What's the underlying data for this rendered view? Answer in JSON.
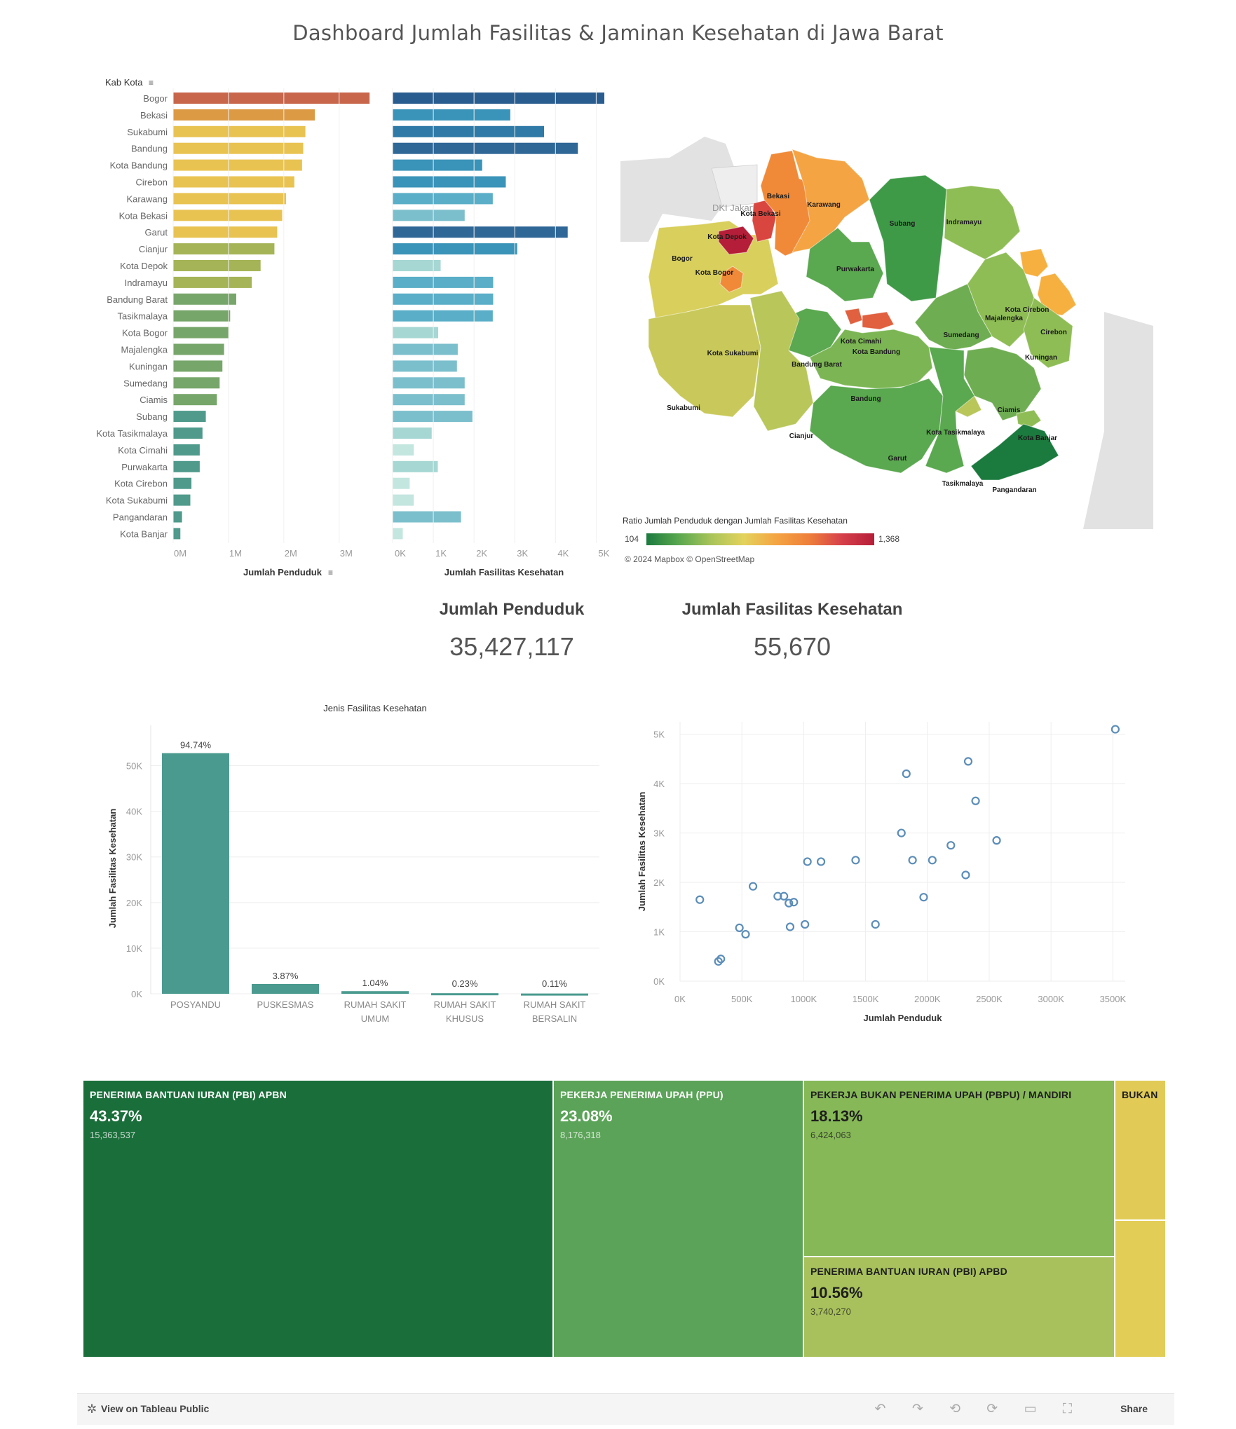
{
  "dashboard": {
    "title": "Dashboard Jumlah Fasilitas & Jaminan Kesehatan di Jawa Barat"
  },
  "chart_data": [
    {
      "id": "penduduk-bar",
      "type": "bar",
      "orientation": "horizontal",
      "dimension_label": "Kab Kota",
      "xlabel": "Jumlah Penduduk",
      "categories": [
        "Bogor",
        "Bekasi",
        "Sukabumi",
        "Bandung",
        "Kota Bandung",
        "Cirebon",
        "Karawang",
        "Kota Bekasi",
        "Garut",
        "Cianjur",
        "Kota Depok",
        "Indramayu",
        "Bandung Barat",
        "Tasikmalaya",
        "Kota Bogor",
        "Majalengka",
        "Kuningan",
        "Sumedang",
        "Ciamis",
        "Subang",
        "Kota Tasikmalaya",
        "Kota Cimahi",
        "Purwakarta",
        "Kota Cirebon",
        "Kota Sukabumi",
        "Pangandaran",
        "Kota Banjar"
      ],
      "values": [
        3550000,
        2560000,
        2390000,
        2350000,
        2330000,
        2190000,
        2040000,
        1970000,
        1880000,
        1830000,
        1580000,
        1420000,
        1140000,
        1030000,
        1010000,
        920000,
        890000,
        840000,
        790000,
        590000,
        530000,
        480000,
        480000,
        330000,
        310000,
        160000,
        130000
      ],
      "xlim": [
        0,
        3700000
      ],
      "ticks": [
        0,
        1000000,
        2000000,
        3000000
      ],
      "tick_labels": [
        "0M",
        "1M",
        "2M",
        "3M"
      ],
      "colors": [
        "#c8664b",
        "#dd9a45",
        "#e9c352",
        "#e9c352",
        "#e9c352",
        "#e9c352",
        "#e9c352",
        "#e9c352",
        "#e9c352",
        "#a5b457",
        "#a5b457",
        "#a5b457",
        "#77a66a",
        "#77a66a",
        "#77a66a",
        "#77a66a",
        "#77a66a",
        "#77a66a",
        "#77a66a",
        "#4f9a8b",
        "#4f9a8b",
        "#4f9a8b",
        "#4f9a8b",
        "#4f9a8b",
        "#4f9a8b",
        "#4f9a8b",
        "#4f9a8b"
      ]
    },
    {
      "id": "fasilitas-bar",
      "type": "bar",
      "orientation": "horizontal",
      "xlabel": "Jumlah Fasilitas Kesehatan",
      "categories": [
        "Bogor",
        "Bekasi",
        "Sukabumi",
        "Bandung",
        "Kota Bandung",
        "Cirebon",
        "Karawang",
        "Kota Bekasi",
        "Garut",
        "Cianjur",
        "Kota Depok",
        "Indramayu",
        "Bandung Barat",
        "Tasikmalaya",
        "Kota Bogor",
        "Majalengka",
        "Kuningan",
        "Sumedang",
        "Ciamis",
        "Subang",
        "Kota Tasikmalaya",
        "Kota Cimahi",
        "Purwakarta",
        "Kota Cirebon",
        "Kota Sukabumi",
        "Pangandaran",
        "Kota Banjar"
      ],
      "values": [
        5200,
        2890,
        3720,
        4550,
        2200,
        2780,
        2460,
        1770,
        4300,
        3060,
        1180,
        2470,
        2470,
        2460,
        1120,
        1600,
        1580,
        1770,
        1770,
        1960,
        960,
        520,
        1110,
        420,
        520,
        1680,
        250
      ],
      "xlim": [
        0,
        5200
      ],
      "ticks": [
        0,
        1000,
        2000,
        3000,
        4000,
        5000
      ],
      "tick_labels": [
        "0K",
        "1K",
        "2K",
        "3K",
        "4K",
        "5K"
      ],
      "colors": [
        "#2a5d8f",
        "#3a93b8",
        "#2f7aa6",
        "#2f6797",
        "#3a93b8",
        "#3a93b8",
        "#5aaec7",
        "#7cbfcc",
        "#2f6797",
        "#3a93b8",
        "#a6d7d3",
        "#5aaec7",
        "#5aaec7",
        "#5aaec7",
        "#a6d7d3",
        "#7cbfcc",
        "#7cbfcc",
        "#7cbfcc",
        "#7cbfcc",
        "#7cbfcc",
        "#a6d7d3",
        "#c3e6df",
        "#a6d7d3",
        "#c3e6df",
        "#c3e6df",
        "#7cbfcc",
        "#c3e6df"
      ]
    },
    {
      "id": "jenis-fasilitas",
      "type": "bar",
      "title": "Jenis Fasilitas Kesehatan",
      "ylabel": "Jumlah Fasilitas Kesehatan",
      "categories": [
        [
          "POSYANDU"
        ],
        [
          "PUSKESMAS"
        ],
        [
          "RUMAH SAKIT",
          "UMUM"
        ],
        [
          "RUMAH SAKIT",
          "KHUSUS"
        ],
        [
          "RUMAH SAKIT",
          "BERSALIN"
        ]
      ],
      "values": [
        52750,
        2155,
        579,
        128,
        61
      ],
      "data_labels": [
        "94.74%",
        "3.87%",
        "1.04%",
        "0.23%",
        "0.11%"
      ],
      "ylim": [
        0,
        55000
      ],
      "ticks": [
        0,
        10000,
        20000,
        30000,
        40000,
        50000
      ],
      "tick_labels": [
        "0K",
        "10K",
        "20K",
        "30K",
        "40K",
        "50K"
      ],
      "color": "#4a9a8f"
    },
    {
      "id": "scatter",
      "type": "scatter",
      "xlabel": "Jumlah Penduduk",
      "ylabel": "Jumlah Fasilitas Kesehatan",
      "xlim": [
        0,
        3600
      ],
      "ylim": [
        0,
        5250
      ],
      "xticks": [
        0,
        500,
        1000,
        1500,
        2000,
        2500,
        3000,
        3500
      ],
      "xtick_labels": [
        "0K",
        "500K",
        "1000K",
        "1500K",
        "2000K",
        "2500K",
        "3000K",
        "3500K"
      ],
      "yticks": [
        0,
        1000,
        2000,
        3000,
        4000,
        5000
      ],
      "ytick_labels": [
        "0K",
        "1K",
        "2K",
        "3K",
        "4K",
        "5K"
      ],
      "x": [
        3520,
        2330,
        1830,
        2390,
        2560,
        1790,
        2190,
        2040,
        1970,
        2310,
        1880,
        1420,
        1140,
        1030,
        590,
        160,
        790,
        840,
        880,
        920,
        890,
        1580,
        1010,
        480,
        530,
        310,
        330
      ],
      "y": [
        5100,
        4450,
        4200,
        3650,
        2850,
        3000,
        2750,
        2450,
        1700,
        2150,
        2450,
        2450,
        2420,
        2420,
        1920,
        1650,
        1720,
        1720,
        1580,
        1600,
        1100,
        1150,
        1150,
        1080,
        950,
        400,
        450
      ],
      "color": "#5b8db8"
    },
    {
      "id": "jaminan-treemap",
      "type": "treemap",
      "items": [
        {
          "name": "PENERIMA BANTUAN IURAN (PBI) APBN",
          "pct": "43.37%",
          "value": "15,363,537",
          "color": "#1a6e3a",
          "text": "#ffffff"
        },
        {
          "name": "PEKERJA PENERIMA UPAH (PPU)",
          "pct": "23.08%",
          "value": "8,176,318",
          "color": "#5ba358",
          "text": "#ffffff"
        },
        {
          "name": "PEKERJA BUKAN PENERIMA UPAH (PBPU) / MANDIRI",
          "pct": "18.13%",
          "value": "6,424,063",
          "color": "#86b857",
          "text": "#1e1e1e"
        },
        {
          "name": "PENERIMA BANTUAN IURAN (PBI) APBD",
          "pct": "10.56%",
          "value": "3,740,270",
          "color": "#a8c15c",
          "text": "#1e1e1e"
        },
        {
          "name": "BUKAN",
          "pct": "",
          "value": "",
          "color": "#e1cb56",
          "text": "#1e1e1e"
        },
        {
          "name": "",
          "pct": "",
          "value": "",
          "color": "#e2cd57",
          "text": "#1e1e1e"
        }
      ]
    }
  ],
  "map": {
    "legend_title": "Ratio Jumlah Penduduk dengan Jumlah Fasilitas Kesehatan",
    "legend_min": "104",
    "legend_max": "1,368",
    "attribution": "© 2024 Mapbox  © OpenStreetMap",
    "context_label": "DKI Jakarta",
    "colors": [
      "#1b7a3e",
      "#5aa84f",
      "#a9c45a",
      "#e3d25d",
      "#f4a443",
      "#ee7f3b",
      "#d6404a",
      "#b51e38"
    ],
    "regions": [
      {
        "label": "Bekasi",
        "color": "#f08a38"
      },
      {
        "label": "Kota Bekasi",
        "color": "#d9463f"
      },
      {
        "label": "Kota Depok",
        "color": "#b51e38"
      },
      {
        "label": "Karawang",
        "color": "#f4a443"
      },
      {
        "label": "Subang",
        "color": "#3f9a48"
      },
      {
        "label": "Indramayu",
        "color": "#8fbd55"
      },
      {
        "label": "Bogor",
        "color": "#d8cf5c"
      },
      {
        "label": "Kota Bogor",
        "color": "#f08a38"
      },
      {
        "label": "Purwakarta",
        "color": "#5aa84f"
      },
      {
        "label": "Kota Cirebon",
        "color": "#f6b040"
      },
      {
        "label": "Cirebon",
        "color": "#f6b040"
      },
      {
        "label": "Majalengka",
        "color": "#8fbd55"
      },
      {
        "label": "Sumedang",
        "color": "#6fad52"
      },
      {
        "label": "Kota Cimahi",
        "color": "#e0603f"
      },
      {
        "label": "Kota Bandung",
        "color": "#e0603f"
      },
      {
        "label": "Kuningan",
        "color": "#8fbd55"
      },
      {
        "label": "Kota Sukabumi",
        "color": "#b8c65a"
      },
      {
        "label": "Bandung Barat",
        "color": "#5aa84f"
      },
      {
        "label": "Bandung",
        "color": "#7cb654"
      },
      {
        "label": "Sukabumi",
        "color": "#c9c95b"
      },
      {
        "label": "Ciamis",
        "color": "#6fad52"
      },
      {
        "label": "Kota Tasikmalaya",
        "color": "#b8c65a"
      },
      {
        "label": "Kota Banjar",
        "color": "#8fbd55"
      },
      {
        "label": "Cianjur",
        "color": "#b8c65a"
      },
      {
        "label": "Garut",
        "color": "#5aa84f"
      },
      {
        "label": "Tasikmalaya",
        "color": "#5aa84f"
      },
      {
        "label": "Pangandaran",
        "color": "#1b7a3e"
      }
    ]
  },
  "kpi": {
    "penduduk_label": "Jumlah Penduduk",
    "penduduk_value": "35,427,117",
    "fasilitas_label": "Jumlah Fasilitas Kesehatan",
    "fasilitas_value": "55,670"
  },
  "footer": {
    "view_label": "View on Tableau Public",
    "share_label": "Share",
    "tools": "↶ ↷ ⟲ ⟳ ▭ ⛶"
  }
}
